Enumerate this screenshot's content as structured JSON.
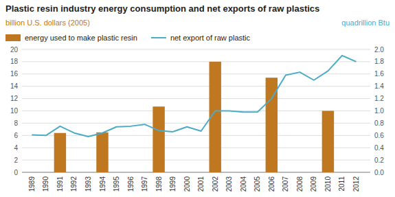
{
  "chart_data": {
    "type": "bar",
    "title": "Plastic resin industry energy consumption and net exports of raw plastics",
    "ylabel": "billion U.S. dollars (2005)",
    "y2label": "quadrillion Btu",
    "xlim": [
      1988.3,
      2013.0
    ],
    "xticks": [
      1989,
      1990,
      1991,
      1992,
      1993,
      1994,
      1995,
      1996,
      1997,
      1998,
      1999,
      2000,
      2001,
      2002,
      2003,
      2004,
      2005,
      2006,
      2007,
      2008,
      2009,
      2010,
      2011,
      2012
    ],
    "ylim": [
      0,
      20
    ],
    "yticks": [
      0,
      2,
      4,
      6,
      8,
      10,
      12,
      14,
      16,
      18,
      20
    ],
    "y2lim": [
      0,
      2.0
    ],
    "y2ticks": [
      {
        "value": 0.0,
        "label": "0.0"
      },
      0.2,
      0.4,
      0.6,
      0.8,
      {
        "value": 1.0,
        "label": "1.0"
      },
      1.2,
      1.4,
      1.6,
      1.8,
      {
        "value": 2.0,
        "label": "2.0"
      }
    ],
    "grid": true,
    "legend": "upper left",
    "series": [
      {
        "name": "energy used to make plastic resin",
        "type": "bar",
        "color": "#c07820",
        "x": [
          1991,
          1994,
          1998,
          2002,
          2006,
          2010
        ],
        "values": [
          6.4,
          6.5,
          10.7,
          18.0,
          15.4,
          10.0
        ]
      },
      {
        "name": "net export of raw plastic",
        "type": "line",
        "color": "#4bacc6",
        "axis": "y2",
        "x": [
          1989,
          1990,
          1991,
          1992,
          1993,
          1994,
          1995,
          1996,
          1997,
          1998,
          1999,
          2000,
          2001,
          2002,
          2003,
          2004,
          2005,
          2006,
          2007,
          2008,
          2009,
          2010,
          2011,
          2012
        ],
        "values": [
          0.61,
          0.6,
          0.75,
          0.64,
          0.58,
          0.64,
          0.74,
          0.75,
          0.78,
          0.68,
          0.66,
          0.74,
          0.67,
          1.0,
          1.0,
          0.98,
          0.98,
          1.2,
          1.58,
          1.63,
          1.5,
          1.65,
          1.9,
          1.8
        ]
      }
    ]
  }
}
